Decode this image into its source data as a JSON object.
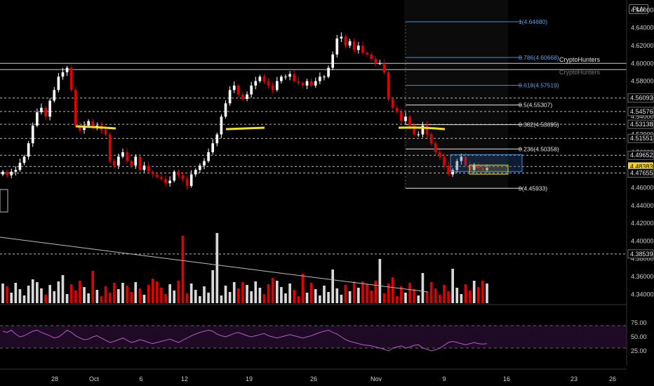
{
  "header": {
    "currency": "PLN"
  },
  "watermark": {
    "label_1": "CryptoHunters",
    "label_2": "CryptoHunters"
  },
  "chart_data": [
    {
      "type": "candlestick",
      "title": "",
      "ylim": [
        4.33,
        4.665
      ],
      "y_ticks": [
        "4.34000",
        "4.36000",
        "4.38000",
        "4.40000",
        "4.42000",
        "4.44000",
        "4.46000",
        "4.48000",
        "4.50000",
        "4.52000",
        "4.54000",
        "4.56000",
        "4.58000",
        "4.60000",
        "4.62000",
        "4.64000",
        "4.66000"
      ],
      "x_ticks": [
        "28",
        "Oct",
        "6",
        "12",
        "19",
        "26",
        "Nov",
        "9",
        "16",
        "23",
        "26"
      ],
      "colors": {
        "up": "#ffffff",
        "down": "#e00000",
        "volume_up": "#d9d9d9",
        "volume_down": "#e00000",
        "rsi_line": "#b45cc4",
        "rsi_band": "#1f0a25",
        "fib_line": "#4a90d9"
      },
      "series_close": [
        4.478,
        4.474,
        4.478,
        4.48,
        4.488,
        4.495,
        4.51,
        4.53,
        4.545,
        4.55,
        4.54,
        4.558,
        4.57,
        4.585,
        4.59,
        4.595,
        4.57,
        4.53,
        4.525,
        4.53,
        4.535,
        4.528,
        4.53,
        4.525,
        4.52,
        4.49,
        4.485,
        4.495,
        4.5,
        4.49,
        4.485,
        4.495,
        4.48,
        4.485,
        4.478,
        4.475,
        4.472,
        4.47,
        4.465,
        4.468,
        4.478,
        4.474,
        4.47,
        4.462,
        4.475,
        4.48,
        4.485,
        4.49,
        4.5,
        4.51,
        4.52,
        4.54,
        4.555,
        4.57,
        4.575,
        4.565,
        4.56,
        4.565,
        4.575,
        4.58,
        4.585,
        4.58,
        4.575,
        4.57,
        4.58,
        4.585,
        4.585,
        4.588,
        4.58,
        4.578,
        4.575,
        4.58,
        4.575,
        4.58,
        4.585,
        4.585,
        4.595,
        4.61,
        4.628,
        4.63,
        4.62,
        4.625,
        4.615,
        4.62,
        4.612,
        4.61,
        4.605,
        4.6,
        4.6,
        4.59,
        4.56,
        4.55,
        4.545,
        4.535,
        4.54,
        4.53,
        4.52,
        4.52,
        4.53,
        4.52,
        4.51,
        4.5,
        4.495,
        4.485,
        4.475,
        4.48,
        4.49,
        4.495,
        4.485,
        4.48,
        4.486,
        4.482,
        4.48,
        4.482
      ],
      "resistance_levels": [
        4.6,
        4.593,
        4.56093,
        4.54576,
        4.53138,
        4.51551,
        4.49652,
        4.48383,
        4.47655,
        4.38539
      ],
      "fib_levels": [
        {
          "label": "1(4.64680)",
          "value": 4.6468
        },
        {
          "label": "0.786(4.60668)",
          "value": 4.60668
        },
        {
          "label": "0.618(4.57519)",
          "value": 4.57519
        },
        {
          "label": "0.5(4.55307)",
          "value": 4.55307
        },
        {
          "label": "0.382(4.53095)",
          "value": 4.53095
        },
        {
          "label": "0.236(4.50358)",
          "value": 4.50358
        },
        {
          "label": "0(4.45933)",
          "value": 4.45933
        }
      ],
      "price_tags": [
        {
          "label": "4.56093",
          "value": 4.56093,
          "highlight": false
        },
        {
          "label": "4.54576",
          "value": 4.54576,
          "highlight": false
        },
        {
          "label": "4.53138",
          "value": 4.53138,
          "highlight": false
        },
        {
          "label": "4.51551",
          "value": 4.51551,
          "highlight": false
        },
        {
          "label": "4.49652",
          "value": 4.49652,
          "highlight": false
        },
        {
          "label": "4.48383",
          "value": 4.48383,
          "highlight": true
        },
        {
          "label": "03:41:18",
          "value": 4.4775,
          "highlight": true
        },
        {
          "label": "4.47655",
          "value": 4.47655,
          "highlight": false
        },
        {
          "label": "4.38539",
          "value": 4.38539,
          "highlight": false
        }
      ],
      "rsi": {
        "levels": [
          "75.00",
          "50.00",
          "25.00"
        ],
        "overbought": 70,
        "oversold": 30,
        "values": [
          60,
          58,
          62,
          55,
          50,
          52,
          56,
          60,
          62,
          58,
          55,
          52,
          48,
          50,
          55,
          62,
          58,
          52,
          48,
          45,
          46,
          50,
          52,
          48,
          44,
          40,
          42,
          45,
          48,
          44,
          40,
          42,
          45,
          43,
          40,
          38,
          40,
          42,
          44,
          46,
          43,
          40,
          44,
          48,
          52,
          55,
          58,
          60,
          62,
          60,
          55,
          52,
          50,
          53,
          56,
          58,
          55,
          52,
          50,
          52,
          54,
          56,
          52,
          50,
          48,
          50,
          52,
          54,
          52,
          50,
          48,
          50,
          52,
          55,
          58,
          60,
          62,
          58,
          55,
          50,
          45,
          42,
          40,
          38,
          36,
          35,
          34,
          32,
          30,
          28,
          25,
          30,
          32,
          34,
          30,
          32,
          35,
          36,
          30,
          28,
          25,
          27,
          30,
          35,
          40,
          42,
          40,
          38,
          36,
          38,
          40,
          38,
          37,
          38
        ]
      }
    }
  ]
}
